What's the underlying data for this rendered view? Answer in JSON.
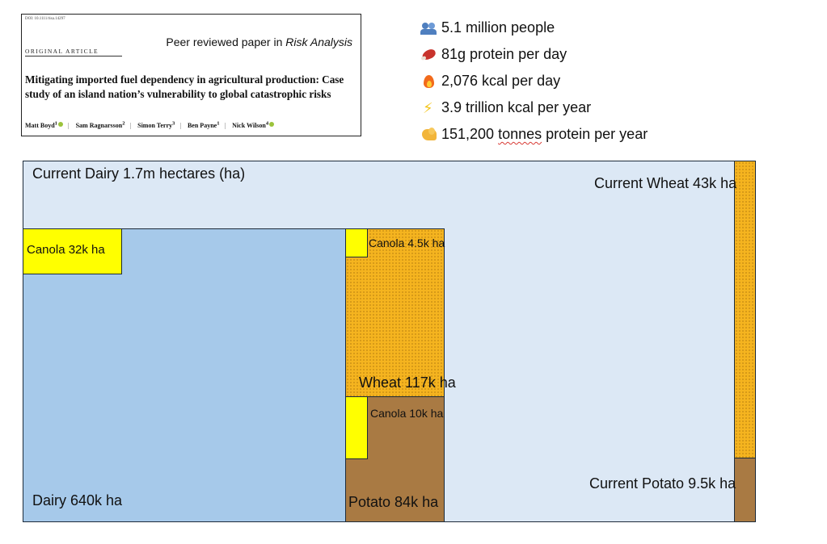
{
  "paper": {
    "doi": "DOI: 10.1111/risa.14297",
    "article_type": "ORIGINAL ARTICLE",
    "venue_prefix": "Peer reviewed paper in ",
    "venue_journal": "Risk Analysis",
    "title": "Mitigating imported fuel dependency in agricultural production: Case study of an island nation’s vulnerability to global catastrophic risks",
    "authors": [
      {
        "name": "Matt Boyd",
        "sup": "1"
      },
      {
        "name": "Sam Ragnarsson",
        "sup": "2"
      },
      {
        "name": "Simon Terry",
        "sup": "3"
      },
      {
        "name": "Ben Payne",
        "sup": "1"
      },
      {
        "name": "Nick Wilson",
        "sup": "4"
      }
    ]
  },
  "stats": [
    {
      "icon": "people-icon",
      "text": "5.1 million people"
    },
    {
      "icon": "meat-icon",
      "text": "81g protein per day"
    },
    {
      "icon": "fire-icon",
      "text": "2,076 kcal per day"
    },
    {
      "icon": "lightning-icon",
      "text": "3.9 trillion kcal per year"
    },
    {
      "icon": "flexed-arm-icon",
      "text_before": "151,200 ",
      "text_marked": "tonnes",
      "text_after": " protein per year"
    }
  ],
  "diagram": {
    "current_dairy": "Current Dairy 1.7m hectares (ha)",
    "current_wheat": "Current Wheat 43k ha",
    "current_potato": "Current Potato 9.5k ha",
    "dairy": "Dairy 640k ha",
    "canola_dairy": "Canola 32k ha",
    "wheat": "Wheat 117k ha",
    "canola_wheat": "Canola 4.5k ha",
    "potato": "Potato 84k ha",
    "canola_potato": "Canola 10k ha"
  },
  "colors": {
    "current_dairy": "#dce8f5",
    "dairy": "#a6c9ea",
    "canola": "#ffff00",
    "wheat": "#f5b41f",
    "potato": "#a97a43",
    "border": "#1d2b3a"
  }
}
